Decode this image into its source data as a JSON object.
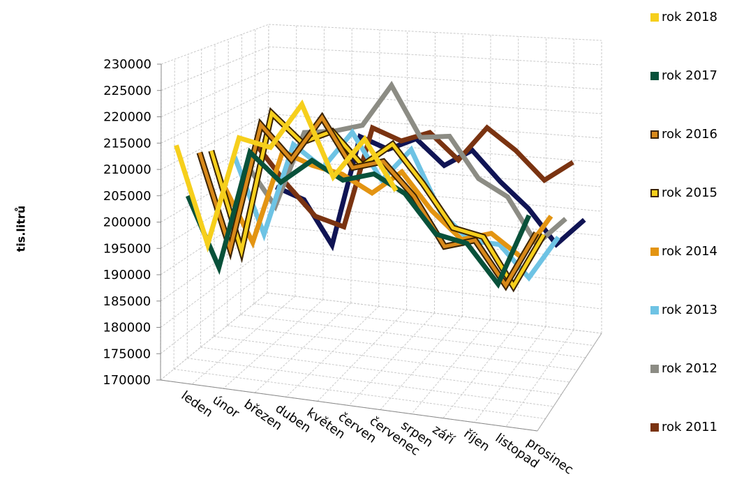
{
  "chart_data": {
    "type": "line",
    "ylabel": "tis.litrů",
    "categories": [
      "leden",
      "únor",
      "březen",
      "duben",
      "květen",
      "červen",
      "červenec",
      "srpen",
      "září",
      "říjen",
      "listopad",
      "prosinec"
    ],
    "y_ticks": [
      "230000",
      "225000",
      "220000",
      "215000",
      "210000",
      "205000",
      "200000",
      "195000",
      "190000",
      "185000",
      "180000",
      "175000",
      "170000"
    ],
    "ylim": [
      170000,
      230000
    ],
    "grid": true,
    "legend_placement": "right",
    "series": [
      {
        "name": "rok 2011",
        "color": "#7a3311",
        "outline": "#7a3311",
        "values": [
          205000,
          198000,
          192000,
          190500,
          212000,
          210000,
          212500,
          207500,
          215000,
          211000,
          205500,
          210000
        ]
      },
      {
        "name": "rok 2012",
        "color": "#8c8c84",
        "outline": "#8c8c84",
        "values": [
          203000,
          195000,
          211000,
          212000,
          214000,
          223000,
          213000,
          214000,
          206000,
          203000,
          194000,
          200000
        ]
      },
      {
        "name": "rok 2013",
        "color": "#6ec3e4",
        "outline": "#6ec3e4",
        "values": [
          206000,
          191000,
          210000,
          206000,
          214000,
          205000,
          212000,
          200000,
          195000,
          195000,
          189000,
          198000
        ]
      },
      {
        "name": "rok 2014",
        "color": "#e39412",
        "outline": "#e39412",
        "values": [
          202000,
          191000,
          210000,
          208000,
          207000,
          204000,
          209000,
          202000,
          197000,
          199000,
          195000,
          204000
        ]
      },
      {
        "name": "rok 2015",
        "color": "#f6cf1c",
        "outline": "#3a2200",
        "values": [
          210000,
          191000,
          219000,
          214000,
          217000,
          211000,
          216000,
          209000,
          201000,
          200000,
          191000,
          202000
        ]
      },
      {
        "name": "rok 2016",
        "color": "#d8891a",
        "outline": "#3a2200",
        "values": [
          211000,
          193000,
          218000,
          212000,
          221000,
          212000,
          214000,
          208000,
          199000,
          201000,
          193000,
          204000
        ]
      },
      {
        "name": "rok 2017",
        "color": "#08513a",
        "outline": "#08513a",
        "values": [
          204000,
          191000,
          214000,
          209000,
          214000,
          211000,
          213000,
          210000,
          203000,
          202000,
          195000,
          209000
        ]
      },
      {
        "name": "rok 2018",
        "color": "#f6cf1c",
        "outline": "#f6cf1c",
        "values": [
          215000,
          197000,
          218000,
          217000,
          226000,
          213000,
          221000,
          212000,
          null,
          null,
          null,
          null
        ]
      }
    ],
    "extra_series_color": "#101454",
    "extra_series_values": [
      194000,
      192000,
      183000,
      207000,
      205000,
      208000,
      203000,
      207000,
      201000,
      196000,
      189000,
      195000
    ]
  }
}
